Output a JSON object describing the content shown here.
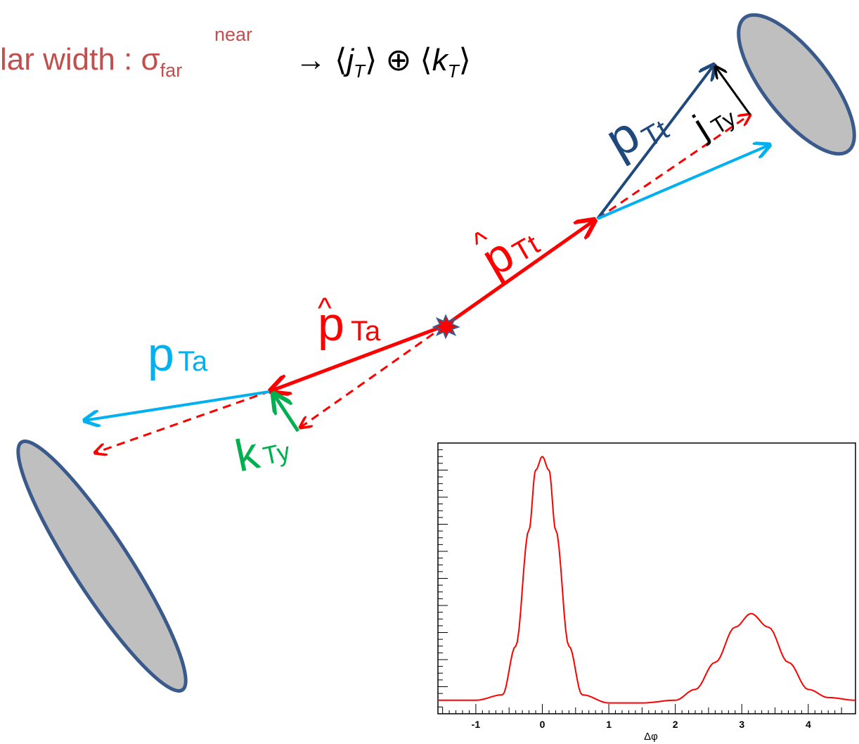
{
  "heading": {
    "label_left": "lar width : σ",
    "label_sub": "far",
    "arrow": "→",
    "jt": "j",
    "kt": "k",
    "sub_T": "T",
    "oplus": "⊕",
    "near_sub": "near"
  },
  "vectors": {
    "pTt": {
      "base": "p",
      "sub": "Tt",
      "color": "#1f497d"
    },
    "jTy": {
      "base": "j",
      "sub": "Ty",
      "color": "#000000"
    },
    "phat_Tt": {
      "base": "p",
      "hat": "^",
      "sub": "Tt",
      "color": "#ff0000"
    },
    "phat_Ta": {
      "base": "p",
      "hat": "^",
      "sub": "Ta",
      "color": "#ff0000"
    },
    "pTa": {
      "base": "p",
      "sub": "Ta",
      "color": "#00b0f0"
    },
    "kTy": {
      "base": "k",
      "sub": "Ty",
      "color": "#00b050"
    }
  },
  "colors": {
    "jet_fill": "#bfbfbf",
    "jet_stroke": "#3a5a8c",
    "parton": "#ff0000",
    "near_particle": "#1f497d",
    "away_particle": "#00b0f0",
    "kt": "#00b050",
    "curve": "#ff0000"
  },
  "chart_data": {
    "type": "line",
    "title": "",
    "xlabel": "Δφ",
    "ylabel": "",
    "xlim": [
      -1.57,
      4.71
    ],
    "x_ticks": [
      "-1",
      "0",
      "1",
      "2",
      "3",
      "4"
    ],
    "y_tick_labels": [],
    "grid": false,
    "series": [
      {
        "x": [
          -1.57,
          -1.0,
          -0.6,
          -0.4,
          -0.2,
          -0.1,
          0.0,
          0.1,
          0.2,
          0.4,
          0.6,
          1.0,
          1.5,
          2.0,
          2.3,
          2.6,
          2.9,
          3.14,
          3.4,
          3.7,
          4.0,
          4.3,
          4.71
        ],
        "y": [
          0.05,
          0.05,
          0.07,
          0.25,
          0.68,
          0.9,
          0.95,
          0.9,
          0.68,
          0.25,
          0.07,
          0.04,
          0.04,
          0.05,
          0.09,
          0.19,
          0.32,
          0.37,
          0.32,
          0.19,
          0.09,
          0.06,
          0.05
        ]
      }
    ]
  }
}
